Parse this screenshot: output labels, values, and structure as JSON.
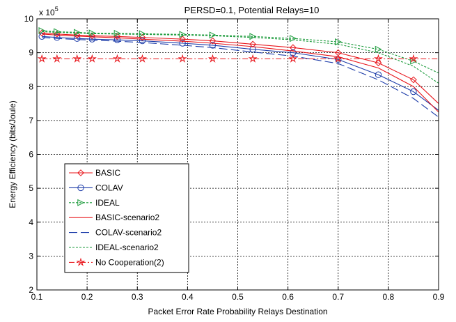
{
  "chart_data": {
    "type": "line",
    "title": "PERSD=0.1, Potential Relays=10",
    "xlabel": "Packet Error Rate Probability Relays Destination",
    "ylabel": "Energy Efficiency (bits/Joule)",
    "y_multiplier_label": "x 10",
    "y_multiplier_exp": "5",
    "xlim": [
      0.1,
      0.9
    ],
    "ylim": [
      2,
      10
    ],
    "x_ticks": [
      0.1,
      0.2,
      0.3,
      0.4,
      0.5,
      0.6,
      0.7,
      0.8,
      0.9
    ],
    "x_tick_labels": [
      "0.1",
      "0.2",
      "0.3",
      "0.4",
      "0.5",
      "0.6",
      "0.7",
      "0.8",
      "0.9"
    ],
    "y_ticks": [
      2,
      3,
      4,
      5,
      6,
      7,
      8,
      9,
      10
    ],
    "y_tick_labels": [
      "2",
      "3",
      "4",
      "5",
      "6",
      "7",
      "8",
      "9",
      "10"
    ],
    "grid": true,
    "legend_position": "lower-left",
    "series": [
      {
        "name": "BASIC",
        "color": "#e8141a",
        "dash": "solid",
        "marker": "diamond",
        "x": [
          0.11,
          0.14,
          0.18,
          0.21,
          0.26,
          0.31,
          0.39,
          0.45,
          0.53,
          0.61,
          0.7,
          0.78,
          0.85,
          0.9
        ],
        "y": [
          9.58,
          9.55,
          9.52,
          9.5,
          9.48,
          9.45,
          9.4,
          9.35,
          9.25,
          9.15,
          9.0,
          8.7,
          8.2,
          7.5
        ]
      },
      {
        "name": "COLAV",
        "color": "#1a3aa8",
        "dash": "solid",
        "marker": "circle",
        "x": [
          0.11,
          0.14,
          0.18,
          0.21,
          0.26,
          0.31,
          0.39,
          0.45,
          0.53,
          0.61,
          0.7,
          0.78,
          0.85,
          0.9
        ],
        "y": [
          9.48,
          9.45,
          9.42,
          9.4,
          9.38,
          9.35,
          9.28,
          9.22,
          9.1,
          9.0,
          8.8,
          8.35,
          7.85,
          7.3
        ]
      },
      {
        "name": "IDEAL",
        "color": "#1a9a3a",
        "dash": "dotted",
        "marker": "triangle-right",
        "x": [
          0.11,
          0.14,
          0.18,
          0.21,
          0.26,
          0.31,
          0.39,
          0.45,
          0.53,
          0.61,
          0.7,
          0.78,
          0.85,
          0.9
        ],
        "y": [
          9.65,
          9.62,
          9.6,
          9.58,
          9.57,
          9.56,
          9.54,
          9.52,
          9.48,
          9.42,
          9.32,
          9.1,
          8.75,
          8.4
        ]
      },
      {
        "name": "BASIC-scenario2",
        "color": "#e8141a",
        "dash": "solid",
        "marker": "none",
        "x": [
          0.11,
          0.14,
          0.18,
          0.21,
          0.26,
          0.31,
          0.39,
          0.45,
          0.53,
          0.61,
          0.7,
          0.78,
          0.85,
          0.9
        ],
        "y": [
          9.55,
          9.52,
          9.49,
          9.47,
          9.44,
          9.4,
          9.34,
          9.28,
          9.18,
          9.05,
          8.88,
          8.55,
          8.0,
          7.25
        ]
      },
      {
        "name": "COLAV-scenario2",
        "color": "#1a3aa8",
        "dash": "longdash",
        "marker": "none",
        "x": [
          0.11,
          0.14,
          0.18,
          0.21,
          0.26,
          0.31,
          0.39,
          0.45,
          0.53,
          0.61,
          0.7,
          0.78,
          0.85,
          0.9
        ],
        "y": [
          9.45,
          9.42,
          9.39,
          9.37,
          9.34,
          9.3,
          9.22,
          9.15,
          9.02,
          8.9,
          8.68,
          8.2,
          7.65,
          7.1
        ]
      },
      {
        "name": "IDEAL-scenario2",
        "color": "#1a9a3a",
        "dash": "dotted",
        "marker": "none",
        "x": [
          0.11,
          0.14,
          0.18,
          0.21,
          0.26,
          0.31,
          0.39,
          0.45,
          0.53,
          0.61,
          0.7,
          0.78,
          0.85,
          0.9
        ],
        "y": [
          9.62,
          9.6,
          9.58,
          9.56,
          9.55,
          9.54,
          9.52,
          9.5,
          9.45,
          9.38,
          9.25,
          9.0,
          8.6,
          8.1
        ]
      },
      {
        "name": "No Cooperation(2)",
        "color": "#e8141a",
        "dash": "dashdot",
        "marker": "star",
        "x": [
          0.11,
          0.14,
          0.18,
          0.21,
          0.26,
          0.31,
          0.39,
          0.45,
          0.53,
          0.61,
          0.7,
          0.78,
          0.85,
          0.9
        ],
        "y": [
          8.82,
          8.82,
          8.82,
          8.82,
          8.82,
          8.82,
          8.82,
          8.82,
          8.82,
          8.82,
          8.82,
          8.82,
          8.82,
          8.82
        ]
      }
    ]
  }
}
